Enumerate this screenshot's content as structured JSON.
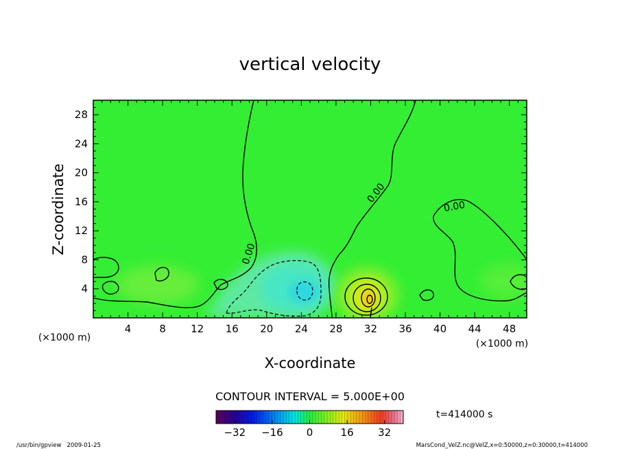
{
  "chart_data": {
    "type": "heatmap",
    "title": "vertical velocity",
    "xlabel": "X-coordinate",
    "ylabel": "Z-coordinate",
    "x_unit": "(×1000 m)",
    "y_unit": "(×1000 m)",
    "xlim": [
      0,
      50
    ],
    "ylim": [
      0,
      30
    ],
    "xticks": [
      4,
      8,
      12,
      16,
      20,
      24,
      28,
      32,
      36,
      40,
      44,
      48
    ],
    "yticks": [
      4,
      8,
      12,
      16,
      20,
      24,
      28
    ],
    "contour_interval_text": "CONTOUR INTERVAL = 5.000E+00",
    "contour_labels": [
      "0.00",
      "0.00",
      "0.00"
    ],
    "colorbar": {
      "range": [
        -40,
        40
      ],
      "ticks": [
        -32,
        -16,
        0,
        16,
        32
      ],
      "tick_labels": [
        "−32",
        "−16",
        "0",
        "16",
        "32"
      ]
    },
    "time_text": "t=414000 s",
    "features": [
      {
        "name": "updraft",
        "x": 31.5,
        "z": 3,
        "peak": 25
      },
      {
        "name": "downdraft",
        "x": 24,
        "z": 4,
        "peak": -10
      },
      {
        "name": "weak-updraft-west",
        "x": 12,
        "z": 5,
        "peak": 3
      }
    ]
  },
  "footer": {
    "left": "/usr/bin/gpview   2009-01-25",
    "right": "MarsCond_VelZ.nc@VelZ,x=0:50000,z=0:30000,t=414000"
  }
}
